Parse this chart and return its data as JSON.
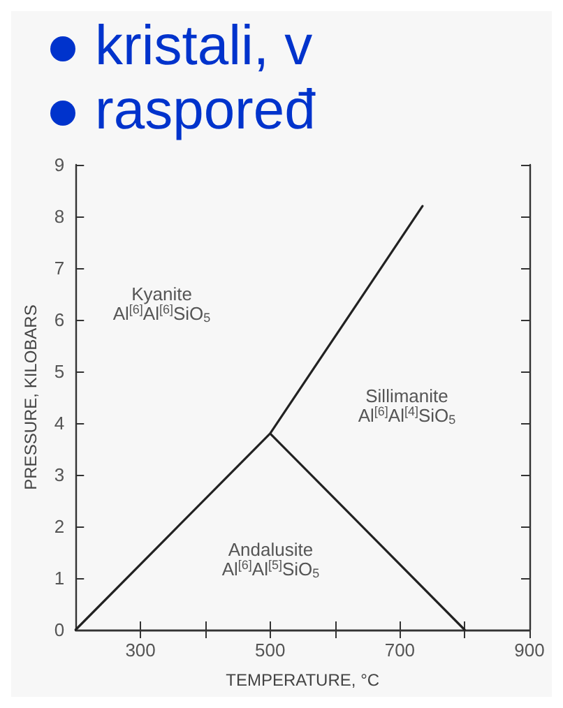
{
  "chart_data": {
    "type": "line",
    "xlabel": "TEMPERATURE, °C",
    "ylabel": "PRESSURE, KILOBARS",
    "xlim": [
      200,
      900
    ],
    "ylim": [
      0,
      9
    ],
    "xticks": [
      300,
      {
        "value": 400,
        "label": null
      },
      500,
      {
        "value": 600,
        "label": null
      },
      700,
      {
        "value": 800,
        "label": null
      },
      900
    ],
    "yticks": [
      0,
      1,
      2,
      3,
      4,
      5,
      6,
      7,
      8,
      9
    ],
    "series": [
      {
        "color": "#222222",
        "x": [
          200,
          500,
          800,
          500,
          735
        ],
        "values": [
          0,
          3.8,
          0,
          3.8,
          8.2
        ]
      }
    ],
    "marker": "none",
    "line_style": "solid",
    "grid": false,
    "annotations": [
      "kristali, v",
      "raspoređ",
      "Kyanite\nAl$^{[6]}$Al$^{[6]}$SiO$_{5}$",
      "Sillimanite\nAl$^{[6]}$Al$^{[4]}$SiO$_{5}$",
      "Andalusite\nAl$^{[6]}$Al$^{[5]}$SiO$_{5}$"
    ]
  }
}
